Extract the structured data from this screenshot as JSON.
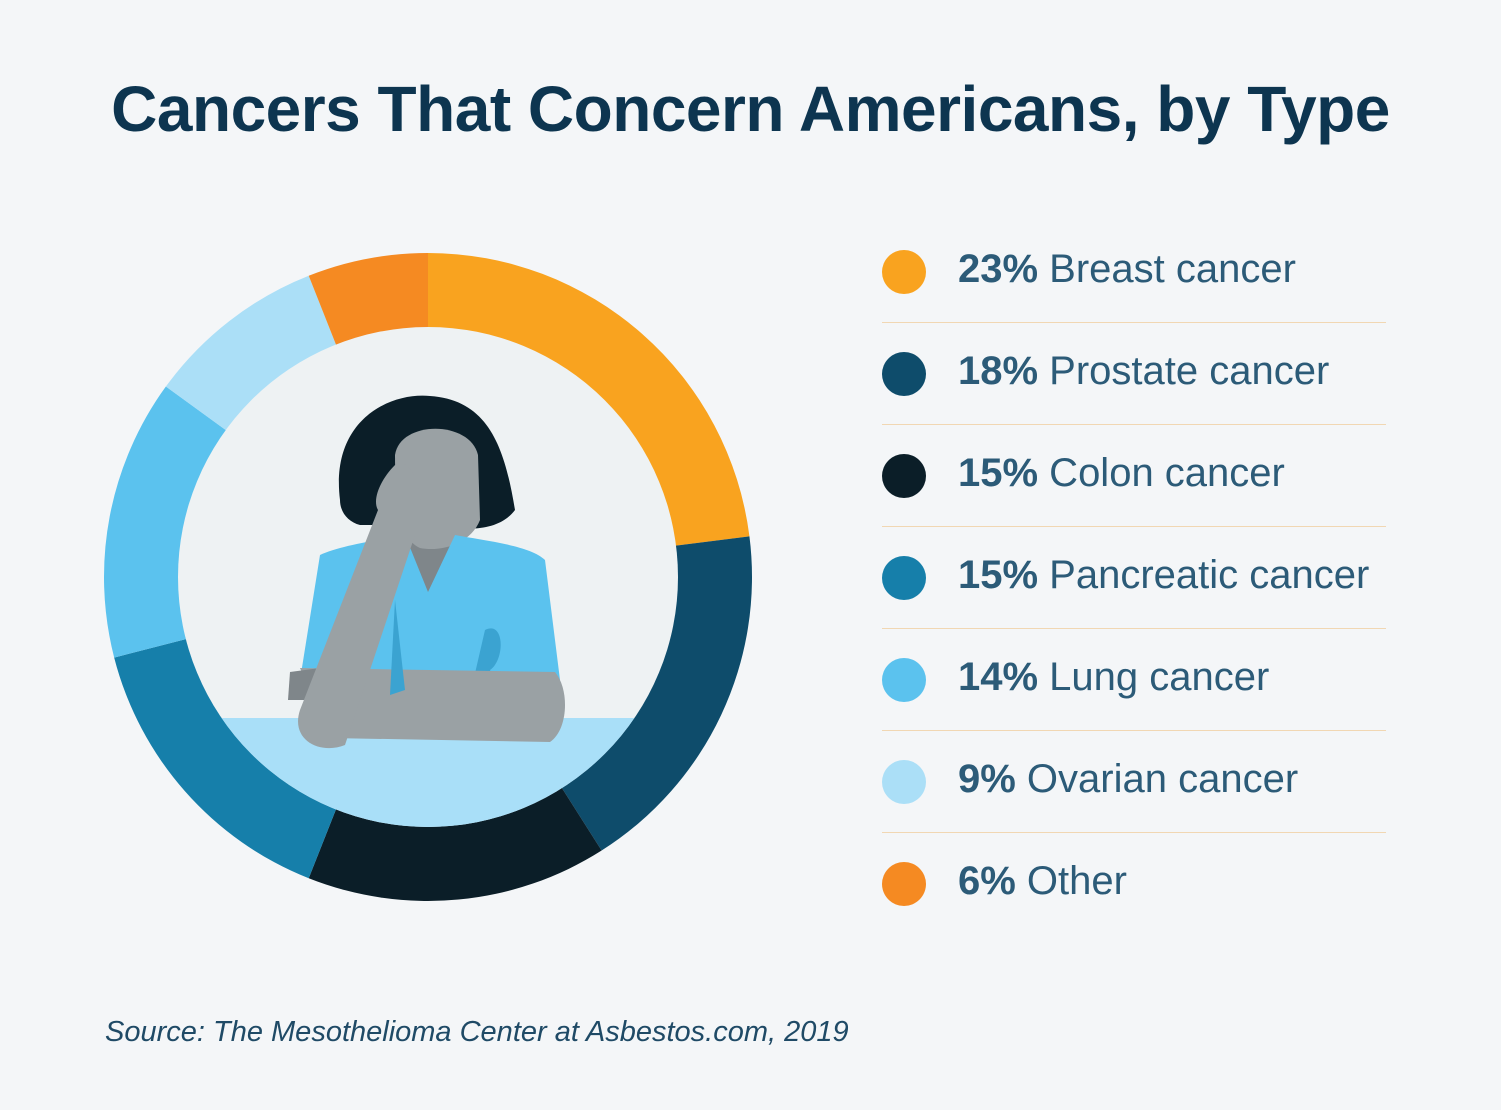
{
  "chart_data": {
    "type": "pie",
    "variant": "donut",
    "title": "Cancers That Concern Americans, by Type",
    "categories": [
      "Breast cancer",
      "Prostate cancer",
      "Colon cancer",
      "Pancreatic cancer",
      "Lung cancer",
      "Ovarian cancer",
      "Other"
    ],
    "values": [
      23,
      18,
      15,
      15,
      14,
      9,
      6
    ],
    "labels": [
      "23%",
      "18%",
      "15%",
      "15%",
      "14%",
      "9%",
      "6%"
    ],
    "colors": [
      "#F9A31F",
      "#0E4C6B",
      "#0B1E28",
      "#167FAA",
      "#5BC2EE",
      "#ABDFF7",
      "#F58A22"
    ],
    "legend_position": "right",
    "source": "Source: The Mesothelioma Center at Asbestos.com, 2019"
  }
}
